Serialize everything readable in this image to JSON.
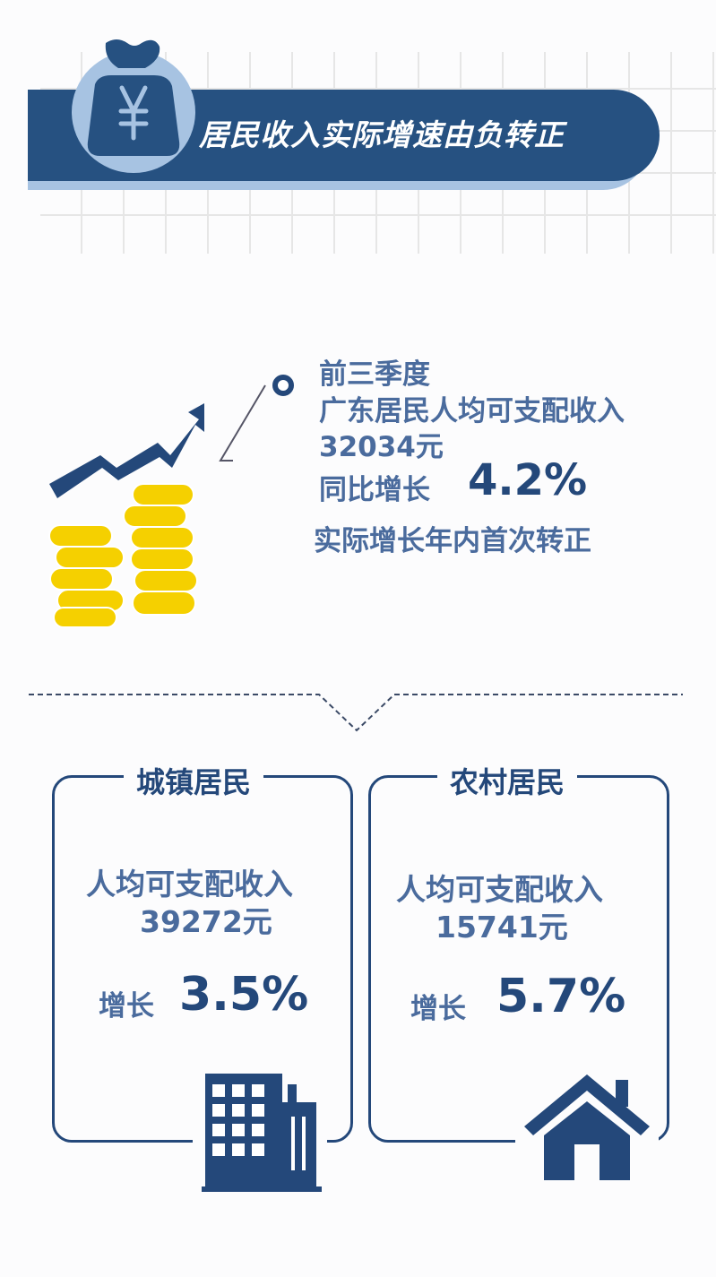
{
  "header": {
    "title": "居民收入实际增速由负转正",
    "icon": "money-bag-yuan-icon"
  },
  "summary": {
    "line1": "前三季度",
    "line2": "广东居民人均可支配收入",
    "line3": "32034元",
    "growth_label": "同比增长",
    "growth_value": "4.2%",
    "note": "实际增长年内首次转正"
  },
  "cards": [
    {
      "title": "城镇居民",
      "income_label": "人均可支配收入",
      "income_value": "39272元",
      "growth_label": "增长",
      "growth_value": "3.5%",
      "icon": "building-icon"
    },
    {
      "title": "农村居民",
      "income_label": "人均可支配收入",
      "income_value": "15741元",
      "growth_label": "增长",
      "growth_value": "5.7%",
      "icon": "house-icon"
    }
  ],
  "colors": {
    "navy": "#265181",
    "light_blue": "#a7c3e2",
    "text_blue": "#4a6b9d",
    "coin_yellow": "#f5d000"
  }
}
